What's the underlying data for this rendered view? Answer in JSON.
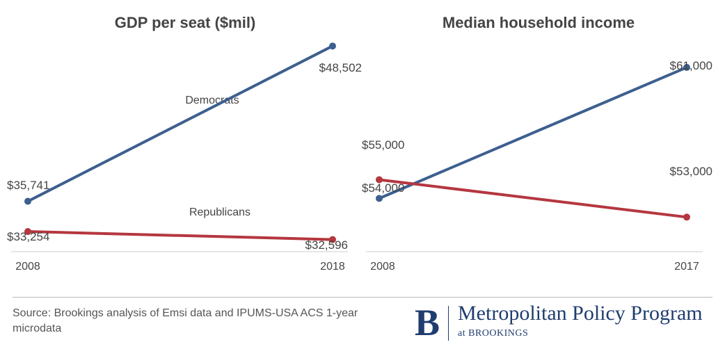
{
  "chart_data": [
    {
      "type": "line",
      "title": "GDP per seat ($mil)",
      "x": [
        "2008",
        "2018"
      ],
      "series": [
        {
          "name": "Democrats",
          "values": [
            35741,
            48502
          ],
          "labels": [
            "$35,741",
            "$48,502"
          ],
          "color": "#3d5f8f"
        },
        {
          "name": "Republicans",
          "values": [
            33254,
            32596
          ],
          "labels": [
            "$33,254",
            "$32,596"
          ],
          "color": "#b5373f"
        }
      ],
      "ylim": [
        30000,
        50000
      ]
    },
    {
      "type": "line",
      "title": "Median household income",
      "x": [
        "2008",
        "2017"
      ],
      "series": [
        {
          "values": [
            54000,
            61000
          ],
          "labels": [
            "$54,000",
            "$61,000"
          ],
          "color": "#3d5f8f"
        },
        {
          "values": [
            55000,
            53000
          ],
          "labels": [
            "$55,000",
            "$53,000"
          ],
          "color": "#b5373f"
        }
      ],
      "ylim": [
        49000,
        62000
      ]
    }
  ],
  "footer": {
    "source": "Source: Brookings analysis of Emsi data and IPUMS-USA ACS 1-year microdata",
    "logo_letter": "B",
    "logo_name": "Metropolitan Policy Program",
    "logo_sub": "at BROOKINGS"
  }
}
